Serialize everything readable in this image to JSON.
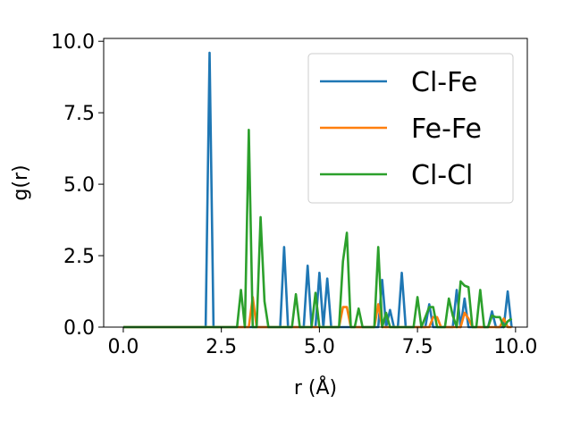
{
  "chart_data": {
    "type": "line",
    "xlabel": "r (Å)",
    "ylabel": "g(r)",
    "xlim": [
      -0.5,
      10.3
    ],
    "ylim": [
      0,
      10.1
    ],
    "xticks": [
      0.0,
      2.5,
      5.0,
      7.5,
      10.0
    ],
    "yticks": [
      0.0,
      2.5,
      5.0,
      7.5,
      10.0
    ],
    "xtick_labels": [
      "0.0",
      "2.5",
      "5.0",
      "7.5",
      "10.0"
    ],
    "ytick_labels": [
      "0.0",
      "2.5",
      "5.0",
      "7.5",
      "10.0"
    ],
    "grid": false,
    "legend_position": "top-right",
    "series": [
      {
        "name": "Cl-Fe",
        "color": "#1f77b4",
        "x": [
          0.0,
          2.1,
          2.2,
          2.3,
          2.4,
          3.9,
          4.0,
          4.1,
          4.2,
          4.6,
          4.7,
          4.8,
          4.9,
          5.0,
          5.1,
          5.2,
          5.3,
          5.4,
          5.5,
          5.6,
          5.7,
          6.4,
          6.5,
          6.6,
          6.7,
          6.8,
          6.9,
          7.0,
          7.1,
          7.2,
          7.3,
          7.5,
          7.6,
          7.7,
          7.8,
          7.9,
          8.0,
          8.1,
          8.2,
          8.3,
          8.4,
          8.5,
          8.6,
          8.7,
          8.8,
          8.9,
          9.0,
          9.1,
          9.2,
          9.3,
          9.4,
          9.5,
          9.6,
          9.7,
          9.8,
          9.9
        ],
        "y": [
          0.0,
          0.0,
          9.6,
          0.0,
          0.0,
          0.0,
          0.0,
          2.8,
          0.0,
          0.0,
          2.15,
          0.0,
          0.0,
          1.9,
          0.0,
          1.7,
          0.0,
          0.0,
          0.0,
          0.0,
          0.0,
          0.0,
          0.0,
          1.65,
          0.0,
          0.6,
          0.0,
          0.0,
          1.9,
          0.0,
          0.0,
          0.0,
          0.0,
          0.0,
          0.8,
          0.0,
          0.0,
          0.0,
          0.0,
          0.0,
          0.0,
          1.3,
          0.0,
          1.0,
          0.0,
          0.0,
          0.0,
          0.0,
          0.0,
          0.0,
          0.55,
          0.0,
          0.0,
          0.0,
          1.25,
          0.0
        ]
      },
      {
        "name": "Fe-Fe",
        "color": "#ff7f0e",
        "x": [
          0.0,
          3.2,
          3.3,
          3.4,
          5.5,
          5.6,
          5.7,
          5.8,
          5.9,
          6.4,
          6.5,
          6.6,
          7.3,
          7.4,
          7.5,
          7.6,
          7.7,
          7.8,
          7.9,
          8.0,
          8.1,
          8.6,
          8.7,
          8.8,
          8.9,
          9.0,
          9.6,
          9.7,
          9.8,
          9.9
        ],
        "y": [
          0.0,
          0.0,
          1.05,
          0.0,
          0.0,
          0.7,
          0.7,
          0.0,
          0.0,
          0.0,
          0.8,
          0.0,
          0.0,
          0.0,
          0.0,
          0.0,
          0.0,
          0.0,
          0.35,
          0.35,
          0.0,
          0.0,
          0.5,
          0.3,
          0.0,
          0.0,
          0.0,
          0.3,
          0.0,
          0.0
        ]
      },
      {
        "name": "Cl-Cl",
        "color": "#2ca02c",
        "x": [
          0.0,
          2.9,
          3.0,
          3.1,
          3.2,
          3.3,
          3.4,
          3.5,
          3.6,
          3.7,
          4.3,
          4.4,
          4.5,
          4.8,
          4.9,
          5.0,
          5.1,
          5.5,
          5.6,
          5.7,
          5.8,
          5.9,
          6.0,
          6.1,
          6.4,
          6.5,
          6.6,
          6.7,
          6.8,
          6.9,
          7.0,
          7.1,
          7.2,
          7.3,
          7.4,
          7.5,
          7.6,
          7.7,
          7.8,
          7.9,
          8.0,
          8.1,
          8.2,
          8.3,
          8.4,
          8.5,
          8.6,
          8.7,
          8.8,
          8.9,
          9.0,
          9.1,
          9.2,
          9.3,
          9.4,
          9.5,
          9.6,
          9.7,
          9.8,
          9.9
        ],
        "y": [
          0.0,
          0.0,
          1.3,
          0.0,
          6.9,
          0.0,
          0.0,
          3.85,
          0.9,
          0.0,
          0.0,
          1.15,
          0.0,
          0.0,
          1.2,
          0.0,
          0.0,
          0.0,
          2.3,
          3.3,
          0.0,
          0.0,
          0.65,
          0.0,
          0.0,
          2.8,
          0.0,
          0.5,
          0.0,
          0.0,
          0.0,
          0.0,
          0.0,
          0.0,
          0.0,
          1.05,
          0.0,
          0.35,
          0.7,
          0.7,
          0.0,
          0.0,
          0.0,
          1.0,
          0.4,
          0.0,
          1.6,
          1.45,
          1.4,
          0.0,
          0.0,
          1.3,
          0.0,
          0.0,
          0.4,
          0.35,
          0.35,
          0.0,
          0.2,
          0.3
        ]
      }
    ]
  }
}
